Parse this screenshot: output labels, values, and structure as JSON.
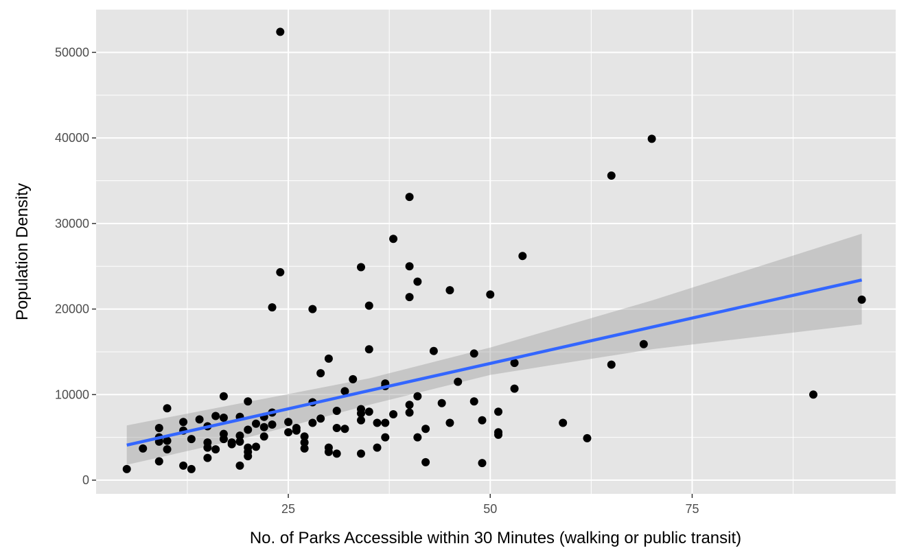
{
  "chart_data": {
    "type": "scatter",
    "title": "",
    "xlabel": "No. of Parks Accessible within 30 Minutes (walking or public transit)",
    "ylabel": "Population Density",
    "xlim": [
      1.2,
      100.2
    ],
    "ylim": [
      -1600,
      55000
    ],
    "x_ticks": [
      25,
      50,
      75
    ],
    "x_tick_labels": [
      "25",
      "50",
      "75"
    ],
    "x_minor_ticks": [
      12.5,
      37.5,
      62.5,
      87.5
    ],
    "y_ticks": [
      0,
      10000,
      20000,
      30000,
      40000,
      50000
    ],
    "y_tick_labels": [
      "0",
      "10000",
      "20000",
      "30000",
      "40000",
      "50000"
    ],
    "y_minor_ticks": [
      5000,
      15000,
      25000,
      35000,
      45000
    ],
    "grid": true,
    "colors": {
      "panel_background": "#e5e5e5",
      "grid": "#ffffff",
      "points": "#000000",
      "fit_line": "#3366ff",
      "confidence_band": "#999999"
    },
    "points": [
      [
        5,
        1300
      ],
      [
        7,
        3700
      ],
      [
        9,
        6100
      ],
      [
        9,
        5000
      ],
      [
        9,
        4500
      ],
      [
        9,
        2200
      ],
      [
        10,
        8400
      ],
      [
        10,
        4600
      ],
      [
        10,
        3600
      ],
      [
        12,
        6800
      ],
      [
        12,
        5800
      ],
      [
        12,
        1700
      ],
      [
        13,
        4800
      ],
      [
        13,
        1300
      ],
      [
        14,
        7100
      ],
      [
        15,
        6300
      ],
      [
        15,
        4400
      ],
      [
        15,
        3800
      ],
      [
        15,
        2600
      ],
      [
        16,
        7500
      ],
      [
        16,
        3600
      ],
      [
        17,
        9800
      ],
      [
        17,
        7300
      ],
      [
        17,
        5400
      ],
      [
        17,
        4800
      ],
      [
        18,
        4400
      ],
      [
        18,
        4200
      ],
      [
        19,
        7400
      ],
      [
        19,
        5200
      ],
      [
        19,
        4500
      ],
      [
        19,
        1700
      ],
      [
        20,
        9200
      ],
      [
        20,
        5900
      ],
      [
        20,
        3800
      ],
      [
        20,
        3300
      ],
      [
        20,
        2800
      ],
      [
        21,
        6600
      ],
      [
        21,
        3900
      ],
      [
        22,
        7400
      ],
      [
        22,
        6200
      ],
      [
        22,
        5100
      ],
      [
        23,
        20200
      ],
      [
        23,
        7900
      ],
      [
        23,
        6500
      ],
      [
        24,
        52400
      ],
      [
        24,
        24300
      ],
      [
        25,
        6800
      ],
      [
        25,
        5600
      ],
      [
        26,
        6100
      ],
      [
        26,
        5800
      ],
      [
        27,
        5100
      ],
      [
        27,
        4400
      ],
      [
        27,
        3700
      ],
      [
        28,
        20000
      ],
      [
        28,
        9100
      ],
      [
        28,
        6700
      ],
      [
        29,
        12500
      ],
      [
        29,
        7200
      ],
      [
        30,
        14200
      ],
      [
        30,
        3800
      ],
      [
        30,
        3300
      ],
      [
        31,
        8100
      ],
      [
        31,
        6100
      ],
      [
        31,
        3100
      ],
      [
        32,
        10400
      ],
      [
        32,
        6000
      ],
      [
        33,
        11800
      ],
      [
        34,
        24900
      ],
      [
        34,
        8300
      ],
      [
        34,
        7800
      ],
      [
        34,
        7000
      ],
      [
        34,
        3100
      ],
      [
        35,
        20400
      ],
      [
        35,
        15300
      ],
      [
        35,
        8000
      ],
      [
        36,
        6700
      ],
      [
        36,
        3800
      ],
      [
        37,
        11300
      ],
      [
        37,
        11000
      ],
      [
        37,
        6700
      ],
      [
        37,
        5000
      ],
      [
        38,
        28200
      ],
      [
        38,
        7700
      ],
      [
        40,
        33100
      ],
      [
        40,
        25000
      ],
      [
        40,
        21400
      ],
      [
        40,
        8800
      ],
      [
        40,
        7900
      ],
      [
        41,
        23200
      ],
      [
        41,
        9800
      ],
      [
        41,
        5000
      ],
      [
        42,
        6000
      ],
      [
        42,
        2100
      ],
      [
        43,
        15100
      ],
      [
        44,
        9000
      ],
      [
        45,
        22200
      ],
      [
        45,
        6700
      ],
      [
        46,
        11500
      ],
      [
        48,
        14800
      ],
      [
        48,
        9200
      ],
      [
        49,
        7000
      ],
      [
        49,
        2000
      ],
      [
        50,
        21700
      ],
      [
        51,
        8000
      ],
      [
        51,
        5600
      ],
      [
        51,
        5300
      ],
      [
        53,
        13700
      ],
      [
        53,
        10700
      ],
      [
        54,
        26200
      ],
      [
        59,
        6700
      ],
      [
        62,
        4900
      ],
      [
        65,
        35600
      ],
      [
        65,
        13500
      ],
      [
        69,
        15900
      ],
      [
        70,
        39900
      ],
      [
        90,
        10000
      ],
      [
        96,
        21100
      ]
    ],
    "fit": {
      "method": "lm",
      "x_range": [
        5,
        96
      ],
      "line": [
        [
          5,
          4100
        ],
        [
          96,
          23400
        ]
      ],
      "band_upper": [
        [
          5,
          6400
        ],
        [
          35,
          11900
        ],
        [
          50,
          15500
        ],
        [
          70,
          21000
        ],
        [
          96,
          28800
        ]
      ],
      "band_lower": [
        [
          5,
          1800
        ],
        [
          20,
          5000
        ],
        [
          35,
          8800
        ],
        [
          50,
          12300
        ],
        [
          70,
          15300
        ],
        [
          96,
          18200
        ]
      ]
    }
  }
}
